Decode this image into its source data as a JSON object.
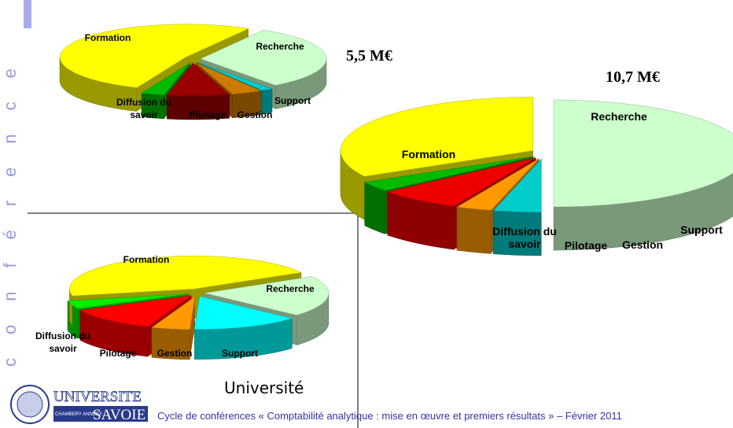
{
  "slide": {
    "side_word": "conférence",
    "logo_name": "UNIVERSITE",
    "logo_place": "SAVOIE",
    "logo_towns": "CHAMBERY ANNECY",
    "footer": "Cycle de conférences « Comptabilité analytique : mise en œuvre et premiers résultats » – Février 2011"
  },
  "chart_data": [
    {
      "type": "pie",
      "title": "5,5 M€",
      "categories": [
        "Recherche",
        "Support",
        "Gestion",
        "Pilotage",
        "Diffusion du savoir",
        "Formation"
      ],
      "values": [
        31.5,
        1.5,
        4,
        8,
        3,
        52
      ],
      "colors": [
        "#ccffcc",
        "#00cccc",
        "#cc7a00",
        "#990000",
        "#00bb00",
        "#ffff00"
      ]
    },
    {
      "type": "pie",
      "title": "10,7 M€",
      "categories": [
        "Recherche",
        "Support",
        "Gestion",
        "Pilotage",
        "Diffusion du savoir",
        "Formation"
      ],
      "values": [
        50,
        4,
        3,
        7,
        3,
        33
      ],
      "colors": [
        "#ccffcc",
        "#00cccc",
        "#ff9900",
        "#ee0000",
        "#00bb00",
        "#ffff00"
      ]
    },
    {
      "type": "pie",
      "title": "Université",
      "categories": [
        "Recherche",
        "Support",
        "Gestion",
        "Pilotage",
        "Diffusion du savoir",
        "Formation"
      ],
      "values": [
        20,
        14,
        5,
        12,
        4,
        45
      ],
      "colors": [
        "#ccffcc",
        "#00ffff",
        "#ff9900",
        "#ff0000",
        "#00ee00",
        "#ffff00"
      ]
    }
  ]
}
